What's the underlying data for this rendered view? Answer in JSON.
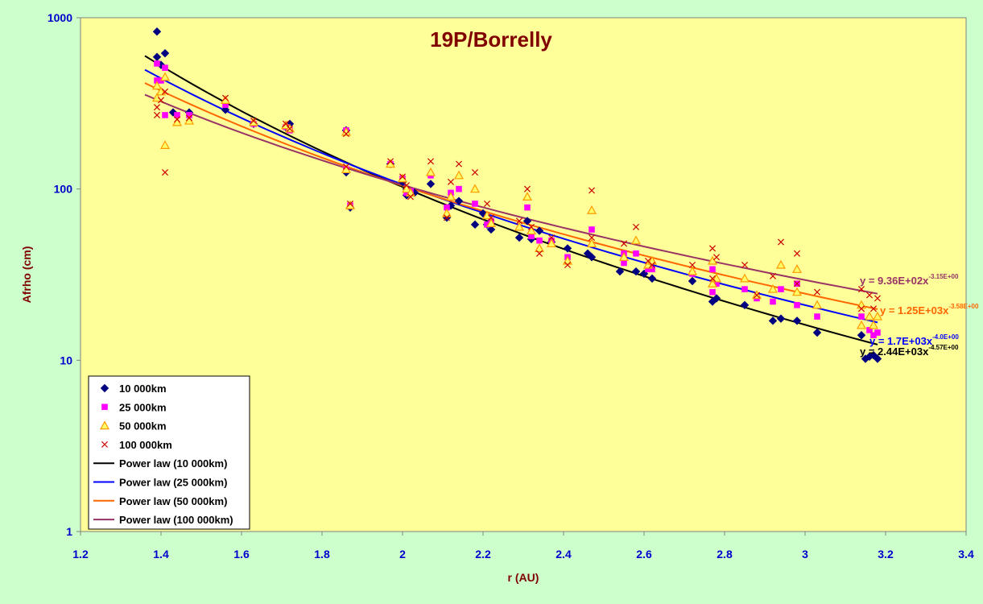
{
  "chart_data": {
    "type": "scatter",
    "title": "19P/Borrelly",
    "xlabel": "r (AU)",
    "ylabel": "Afrho (cm)",
    "xlim": [
      1.2,
      3.4
    ],
    "ylim": [
      1,
      1000
    ],
    "yscale": "log",
    "x_ticks": [
      "1.2",
      "1.4",
      "1.6",
      "1.8",
      "2",
      "2.2",
      "2.4",
      "2.6",
      "2.8",
      "3",
      "3.2",
      "3.4"
    ],
    "y_ticks": [
      "1",
      "10",
      "100",
      "1000"
    ],
    "legend_position": "bottom-left",
    "series": [
      {
        "name": "10 000km",
        "color": "#000080",
        "marker": "diamond",
        "points": [
          [
            1.39,
            830
          ],
          [
            1.39,
            590
          ],
          [
            1.4,
            530
          ],
          [
            1.41,
            620
          ],
          [
            1.43,
            280
          ],
          [
            1.47,
            280
          ],
          [
            1.56,
            290
          ],
          [
            1.63,
            240
          ],
          [
            1.71,
            230
          ],
          [
            1.72,
            240
          ],
          [
            1.86,
            125
          ],
          [
            1.86,
            220
          ],
          [
            1.87,
            78
          ],
          [
            1.97,
            140
          ],
          [
            2.0,
            110
          ],
          [
            2.01,
            100
          ],
          [
            2.01,
            92
          ],
          [
            2.03,
            95
          ],
          [
            2.07,
            107
          ],
          [
            2.11,
            68
          ],
          [
            2.12,
            80
          ],
          [
            2.14,
            85
          ],
          [
            2.18,
            62
          ],
          [
            2.2,
            72
          ],
          [
            2.21,
            62
          ],
          [
            2.22,
            58
          ],
          [
            2.29,
            52
          ],
          [
            2.31,
            65
          ],
          [
            2.32,
            51
          ],
          [
            2.34,
            57
          ],
          [
            2.37,
            49
          ],
          [
            2.41,
            45
          ],
          [
            2.46,
            42
          ],
          [
            2.47,
            40
          ],
          [
            2.54,
            33
          ],
          [
            2.58,
            33
          ],
          [
            2.6,
            32
          ],
          [
            2.62,
            30
          ],
          [
            2.72,
            29
          ],
          [
            2.77,
            22
          ],
          [
            2.78,
            23
          ],
          [
            2.85,
            21
          ],
          [
            2.92,
            17
          ],
          [
            2.94,
            17.5
          ],
          [
            2.98,
            17
          ],
          [
            3.03,
            14.5
          ],
          [
            3.14,
            14
          ],
          [
            3.15,
            10.2
          ],
          [
            3.16,
            10.5
          ],
          [
            3.17,
            10.7
          ],
          [
            3.18,
            10.2
          ]
        ]
      },
      {
        "name": "25 000km",
        "color": "#ff00ff",
        "marker": "square",
        "points": [
          [
            1.39,
            540
          ],
          [
            1.39,
            430
          ],
          [
            1.4,
            430
          ],
          [
            1.41,
            270
          ],
          [
            1.41,
            510
          ],
          [
            1.44,
            270
          ],
          [
            1.47,
            270
          ],
          [
            1.56,
            310
          ],
          [
            1.63,
            240
          ],
          [
            1.71,
            230
          ],
          [
            1.72,
            220
          ],
          [
            1.86,
            130
          ],
          [
            1.86,
            220
          ],
          [
            1.87,
            80
          ],
          [
            1.97,
            140
          ],
          [
            2.0,
            115
          ],
          [
            2.01,
            95
          ],
          [
            2.02,
            97
          ],
          [
            2.07,
            120
          ],
          [
            2.11,
            78
          ],
          [
            2.12,
            95
          ],
          [
            2.14,
            100
          ],
          [
            2.18,
            82
          ],
          [
            2.21,
            62
          ],
          [
            2.22,
            65
          ],
          [
            2.31,
            78
          ],
          [
            2.32,
            53
          ],
          [
            2.34,
            50
          ],
          [
            2.37,
            50
          ],
          [
            2.41,
            40
          ],
          [
            2.47,
            58
          ],
          [
            2.55,
            37
          ],
          [
            2.55,
            42
          ],
          [
            2.58,
            42
          ],
          [
            2.61,
            34
          ],
          [
            2.62,
            34
          ],
          [
            2.72,
            32
          ],
          [
            2.77,
            34
          ],
          [
            2.77,
            25
          ],
          [
            2.78,
            28
          ],
          [
            2.85,
            26
          ],
          [
            2.88,
            23
          ],
          [
            2.92,
            22
          ],
          [
            2.94,
            26
          ],
          [
            2.98,
            28
          ],
          [
            2.98,
            21
          ],
          [
            3.03,
            18
          ],
          [
            3.14,
            18
          ],
          [
            3.16,
            15
          ],
          [
            3.17,
            14
          ],
          [
            3.18,
            14.5
          ]
        ]
      },
      {
        "name": "50 000km",
        "color": "#ff9900",
        "marker": "triangle",
        "points": [
          [
            1.39,
            340
          ],
          [
            1.39,
            400
          ],
          [
            1.4,
            370
          ],
          [
            1.41,
            180
          ],
          [
            1.41,
            450
          ],
          [
            1.44,
            245
          ],
          [
            1.47,
            250
          ],
          [
            1.56,
            330
          ],
          [
            1.63,
            245
          ],
          [
            1.71,
            235
          ],
          [
            1.72,
            225
          ],
          [
            1.86,
            130
          ],
          [
            1.86,
            215
          ],
          [
            1.87,
            80
          ],
          [
            1.97,
            140
          ],
          [
            2.0,
            115
          ],
          [
            2.01,
            100
          ],
          [
            2.02,
            95
          ],
          [
            2.07,
            125
          ],
          [
            2.11,
            72
          ],
          [
            2.12,
            90
          ],
          [
            2.14,
            120
          ],
          [
            2.18,
            100
          ],
          [
            2.21,
            70
          ],
          [
            2.22,
            63
          ],
          [
            2.29,
            60
          ],
          [
            2.31,
            90
          ],
          [
            2.32,
            57
          ],
          [
            2.34,
            45
          ],
          [
            2.37,
            48
          ],
          [
            2.41,
            38
          ],
          [
            2.47,
            75
          ],
          [
            2.47,
            48
          ],
          [
            2.55,
            40
          ],
          [
            2.58,
            50
          ],
          [
            2.61,
            36
          ],
          [
            2.62,
            38
          ],
          [
            2.72,
            33
          ],
          [
            2.77,
            38
          ],
          [
            2.77,
            28
          ],
          [
            2.78,
            30
          ],
          [
            2.85,
            30
          ],
          [
            2.88,
            24
          ],
          [
            2.92,
            26
          ],
          [
            2.94,
            36
          ],
          [
            2.98,
            34
          ],
          [
            2.98,
            25
          ],
          [
            3.03,
            21
          ],
          [
            3.14,
            21
          ],
          [
            3.14,
            16
          ],
          [
            3.16,
            18
          ],
          [
            3.17,
            16
          ],
          [
            3.18,
            18
          ]
        ]
      },
      {
        "name": "100 000km",
        "color": "#cc0000",
        "marker": "x",
        "points": [
          [
            1.39,
            270
          ],
          [
            1.39,
            300
          ],
          [
            1.4,
            330
          ],
          [
            1.41,
            125
          ],
          [
            1.41,
            370
          ],
          [
            1.44,
            255
          ],
          [
            1.47,
            260
          ],
          [
            1.56,
            340
          ],
          [
            1.63,
            250
          ],
          [
            1.71,
            240
          ],
          [
            1.72,
            225
          ],
          [
            1.86,
            135
          ],
          [
            1.86,
            210
          ],
          [
            1.87,
            82
          ],
          [
            1.97,
            145
          ],
          [
            2.0,
            118
          ],
          [
            2.01,
            105
          ],
          [
            2.02,
            90
          ],
          [
            2.07,
            145
          ],
          [
            2.11,
            68
          ],
          [
            2.12,
            110
          ],
          [
            2.14,
            140
          ],
          [
            2.18,
            125
          ],
          [
            2.21,
            82
          ],
          [
            2.22,
            68
          ],
          [
            2.29,
            65
          ],
          [
            2.31,
            100
          ],
          [
            2.32,
            60
          ],
          [
            2.34,
            42
          ],
          [
            2.37,
            52
          ],
          [
            2.41,
            36
          ],
          [
            2.47,
            98
          ],
          [
            2.47,
            52
          ],
          [
            2.55,
            48
          ],
          [
            2.58,
            60
          ],
          [
            2.61,
            38
          ],
          [
            2.62,
            36
          ],
          [
            2.72,
            36
          ],
          [
            2.77,
            45
          ],
          [
            2.77,
            30
          ],
          [
            2.78,
            40
          ],
          [
            2.85,
            36
          ],
          [
            2.88,
            24
          ],
          [
            2.92,
            31
          ],
          [
            2.94,
            49
          ],
          [
            2.98,
            42
          ],
          [
            2.98,
            28
          ],
          [
            3.03,
            25
          ],
          [
            3.14,
            26
          ],
          [
            3.14,
            20
          ],
          [
            3.16,
            24
          ],
          [
            3.17,
            20
          ],
          [
            3.18,
            23
          ]
        ]
      }
    ],
    "fits": [
      {
        "name": "Power law (10 000km)",
        "color": "#000000",
        "a": 2440,
        "b": -4.57,
        "x_range": [
          1.36,
          3.18
        ],
        "eq_text": "y = 2.44E+03x",
        "eq_exp": "-4.57E+00"
      },
      {
        "name": "Power law (25 000km)",
        "color": "#0000ff",
        "a": 1700,
        "b": -4.0,
        "x_range": [
          1.36,
          3.18
        ],
        "eq_text": "y = 1.7E+03x",
        "eq_exp": "-4.0E+00"
      },
      {
        "name": "Power law (50 000km)",
        "color": "#ff6600",
        "a": 1250,
        "b": -3.58,
        "x_range": [
          1.36,
          3.18
        ],
        "eq_text": "y = 1.25E+03x",
        "eq_exp": "-3.58E+00"
      },
      {
        "name": "Power law (100 000km)",
        "color": "#993366",
        "a": 936,
        "b": -3.15,
        "x_range": [
          1.36,
          3.18
        ],
        "eq_text": "y = 9.36E+02x",
        "eq_exp": "-3.15E+00"
      }
    ]
  }
}
